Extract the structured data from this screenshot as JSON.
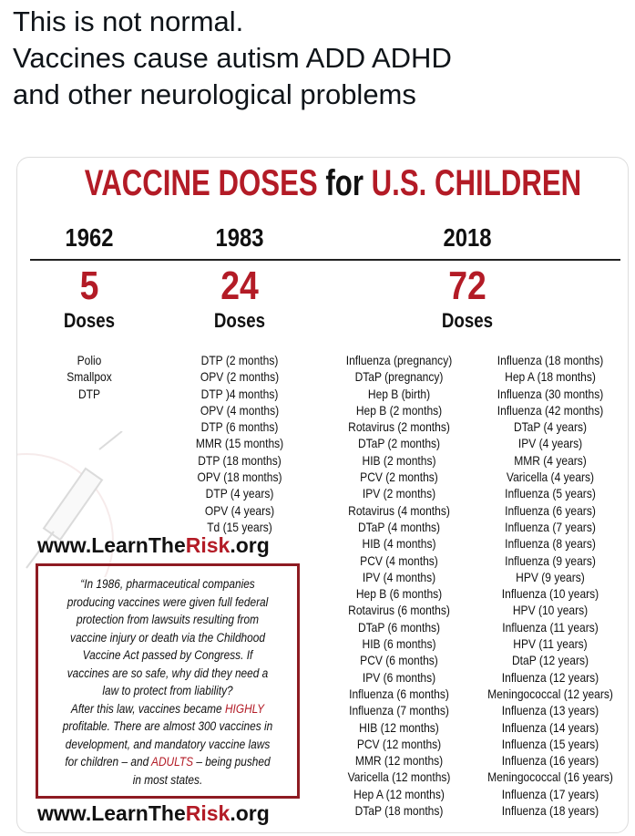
{
  "post": {
    "lines": [
      "This is not normal.",
      "Vaccines cause autism ADD ADHD",
      "and other neurological problems"
    ]
  },
  "card": {
    "title": [
      {
        "text": "VACCINE DOSES",
        "highlight": true
      },
      {
        "text": "for",
        "highlight": false
      },
      {
        "text": "U.S. CHILDREN",
        "highlight": true
      }
    ],
    "columns": [
      {
        "year": "1962",
        "count": "5",
        "unit": "Doses",
        "lists": [
          [
            "Polio",
            "Smallpox",
            "DTP"
          ]
        ]
      },
      {
        "year": "1983",
        "count": "24",
        "unit": "Doses",
        "lists": [
          [
            "DTP (2 months)",
            "OPV (2 months)",
            "DTP )4 months)",
            "OPV (4 months)",
            "DTP (6 months)",
            "MMR (15 months)",
            "DTP (18 months)",
            "OPV (18 months)",
            "DTP (4 years)",
            "OPV (4 years)",
            "Td (15 years)"
          ]
        ]
      },
      {
        "year": "2018",
        "count": "72",
        "unit": "Doses",
        "lists": [
          [
            "Influenza (pregnancy)",
            "DTaP (pregnancy)",
            "Hep B (birth)",
            "Hep B (2 months)",
            "Rotavirus (2 months)",
            "DTaP (2 months)",
            "HIB (2 months)",
            "PCV (2 months)",
            "IPV (2 months)",
            "Rotavirus (4 months)",
            "DTaP (4 months)",
            "HIB (4 months)",
            "PCV (4 months)",
            "IPV (4 months)",
            "Hep B (6 months)",
            "Rotavirus (6 months)",
            "DTaP (6 months)",
            "HIB (6 months)",
            "PCV (6 months)",
            "IPV (6 months)",
            "Influenza (6 months)",
            "Influenza (7 months)",
            "HIB (12 months)",
            "PCV (12 months)",
            "MMR (12 months)",
            "Varicella (12 months)",
            "Hep A (12 months)",
            "DTaP (18 months)"
          ],
          [
            "Influenza (18 months)",
            "Hep A (18 months)",
            "Influenza (30 months)",
            "Influenza (42 months)",
            "DTaP (4 years)",
            "IPV (4 years)",
            "MMR (4 years)",
            "Varicella (4 years)",
            "Influenza (5 years)",
            "Influenza (6 years)",
            "Influenza (7 years)",
            "Influenza (8 years)",
            "Influenza (9 years)",
            "HPV (9 years)",
            "Influenza (10 years)",
            "HPV (10 years)",
            "Influenza (11 years)",
            "HPV (11 years)",
            "DtaP (12 years)",
            "Influenza (12 years)",
            "Meningococcal (12 years)",
            "Influenza (13 years)",
            "Influenza (14 years)",
            "Influenza (15 years)",
            "Influenza (16 years)",
            "Meningococcal (16 years)",
            "Influenza (17 years)",
            "Influenza (18 years)"
          ]
        ]
      }
    ],
    "website": [
      {
        "text": "www.LearnThe",
        "highlight": false
      },
      {
        "text": "Risk",
        "highlight": true
      },
      {
        "text": ".org",
        "highlight": false
      }
    ],
    "quote": [
      [
        {
          "text": "“In 1986, pharmaceutical companies",
          "highlight": false
        }
      ],
      [
        {
          "text": "producing vaccines were given full federal",
          "highlight": false
        }
      ],
      [
        {
          "text": "protection from lawsuits resulting from",
          "highlight": false
        }
      ],
      [
        {
          "text": "vaccine injury or death via the Childhood",
          "highlight": false
        }
      ],
      [
        {
          "text": "Vaccine Act passed by Congress. If",
          "highlight": false
        }
      ],
      [
        {
          "text": "vaccines are so safe, why did they need a",
          "highlight": false
        }
      ],
      [
        {
          "text": "law to protect from liability?",
          "highlight": false
        }
      ],
      [
        {
          "text": "After this law, vaccines became",
          "highlight": false
        },
        {
          "text": "HIGHLY",
          "highlight": true
        }
      ],
      [
        {
          "text": "profitable. There are almost 300 vaccines in",
          "highlight": false
        }
      ],
      [
        {
          "text": "development, and mandatory vaccine laws",
          "highlight": false
        }
      ],
      [
        {
          "text": "for children – and",
          "highlight": false
        },
        {
          "text": "ADULTS",
          "highlight": true
        },
        {
          "text": "– being pushed",
          "highlight": false
        }
      ],
      [
        {
          "text": "in most states.",
          "highlight": false
        }
      ]
    ]
  }
}
